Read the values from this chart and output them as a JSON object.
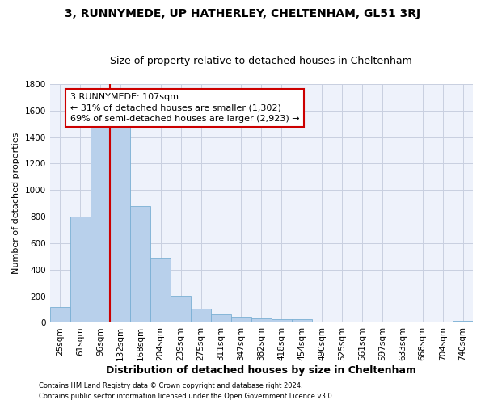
{
  "title": "3, RUNNYMEDE, UP HATHERLEY, CHELTENHAM, GL51 3RJ",
  "subtitle": "Size of property relative to detached houses in Cheltenham",
  "xlabel": "Distribution of detached houses by size in Cheltenham",
  "ylabel": "Number of detached properties",
  "footer_line1": "Contains HM Land Registry data © Crown copyright and database right 2024.",
  "footer_line2": "Contains public sector information licensed under the Open Government Licence v3.0.",
  "bar_labels": [
    "25sqm",
    "61sqm",
    "96sqm",
    "132sqm",
    "168sqm",
    "204sqm",
    "239sqm",
    "275sqm",
    "311sqm",
    "347sqm",
    "382sqm",
    "418sqm",
    "454sqm",
    "490sqm",
    "525sqm",
    "561sqm",
    "597sqm",
    "633sqm",
    "668sqm",
    "704sqm",
    "740sqm"
  ],
  "bar_values": [
    120,
    800,
    1490,
    1490,
    880,
    490,
    205,
    105,
    65,
    45,
    35,
    30,
    25,
    10,
    0,
    0,
    0,
    0,
    0,
    0,
    15
  ],
  "bar_color": "#b8d0eb",
  "bar_edgecolor": "#7aafd4",
  "background_color": "#eef2fb",
  "grid_color": "#c8cfe0",
  "vline_x_index": 2,
  "vline_color": "#cc0000",
  "annotation_text": "3 RUNNYMEDE: 107sqm\n← 31% of detached houses are smaller (1,302)\n69% of semi-detached houses are larger (2,923) →",
  "annotation_box_color": "#cc0000",
  "ylim": [
    0,
    1800
  ],
  "yticks": [
    0,
    200,
    400,
    600,
    800,
    1000,
    1200,
    1400,
    1600,
    1800
  ],
  "title_fontsize": 10,
  "subtitle_fontsize": 9,
  "xlabel_fontsize": 9,
  "ylabel_fontsize": 8,
  "tick_fontsize": 7.5,
  "annotation_fontsize": 8,
  "footer_fontsize": 6
}
